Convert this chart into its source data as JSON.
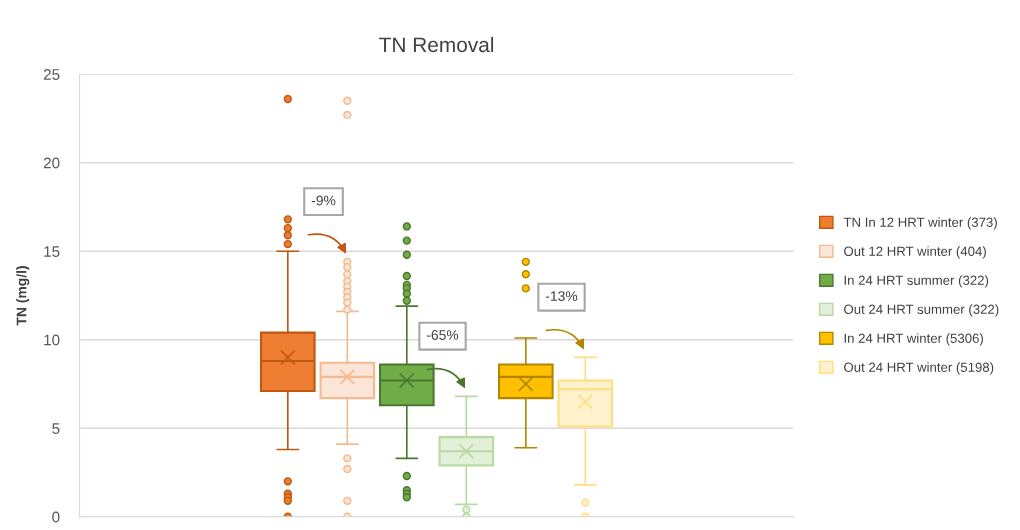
{
  "chart_data": {
    "type": "box",
    "title": "TN Removal",
    "ylabel": "TN (mg/l)",
    "categories": [
      null
    ],
    "series": [
      {
        "name": "TN In 12 HRT winter (373)",
        "color": "#ed7d31",
        "boxes": [
          {
            "low": 3.8,
            "q1": 7.1,
            "median": 8.8,
            "q3": 10.4,
            "high": 15.0,
            "mean": 9.0,
            "outliers": [
              23.6,
              16.8,
              16.3,
              15.9,
              15.4,
              2.0,
              1.3,
              1.1,
              0.9,
              0
            ]
          }
        ]
      },
      {
        "name": "Out 12 HRT winter (404)",
        "color": "#fbe5d6",
        "boxes": [
          {
            "low": 4.1,
            "q1": 6.7,
            "median": 7.9,
            "q3": 8.7,
            "high": 11.6,
            "mean": 7.9,
            "outliers": [
              23.5,
              22.7,
              14.4,
              14.1,
              13.7,
              13.3,
              13.0,
              12.7,
              12.4,
              12.1,
              11.7,
              3.3,
              2.7,
              0.9,
              0
            ]
          }
        ]
      },
      {
        "name": "In 24 HRT summer (322)",
        "color": "#70ad47",
        "boxes": [
          {
            "low": 3.3,
            "q1": 6.3,
            "median": 7.7,
            "q3": 8.6,
            "high": 11.9,
            "mean": 7.7,
            "outliers": [
              16.4,
              15.6,
              14.8,
              13.6,
              13.1,
              12.9,
              12.6,
              12.2,
              2.3,
              1.5,
              1.3,
              1.1
            ]
          }
        ]
      },
      {
        "name": "Out 24 HRT summer (322)",
        "color": "#e2f0d9",
        "boxes": [
          {
            "low": 0.7,
            "q1": 2.9,
            "median": 3.7,
            "q3": 4.5,
            "high": 6.8,
            "mean": 3.7,
            "outliers": [
              0.4,
              0
            ]
          }
        ]
      },
      {
        "name": "In 24 HRT winter (5306)",
        "color": "#ffc000",
        "boxes": [
          {
            "low": 3.9,
            "q1": 6.7,
            "median": 7.9,
            "q3": 8.6,
            "high": 10.1,
            "mean": 7.5,
            "outliers": [
              14.4,
              13.7,
              12.9
            ]
          }
        ]
      },
      {
        "name": "Out 24 HRT winter (5198)",
        "color": "#fff2cc",
        "boxes": [
          {
            "low": 1.8,
            "q1": 5.1,
            "median": 7.2,
            "q3": 7.7,
            "high": 9.0,
            "mean": 6.5,
            "outliers": [
              0.8,
              0
            ]
          }
        ]
      }
    ],
    "annotations": [
      "-9%",
      "-65%",
      "-13%"
    ],
    "ylim": [
      0,
      25
    ],
    "yticks": [
      0,
      5,
      10,
      15,
      20,
      25
    ],
    "grid": "y",
    "legend": "right",
    "marker": "circle"
  }
}
